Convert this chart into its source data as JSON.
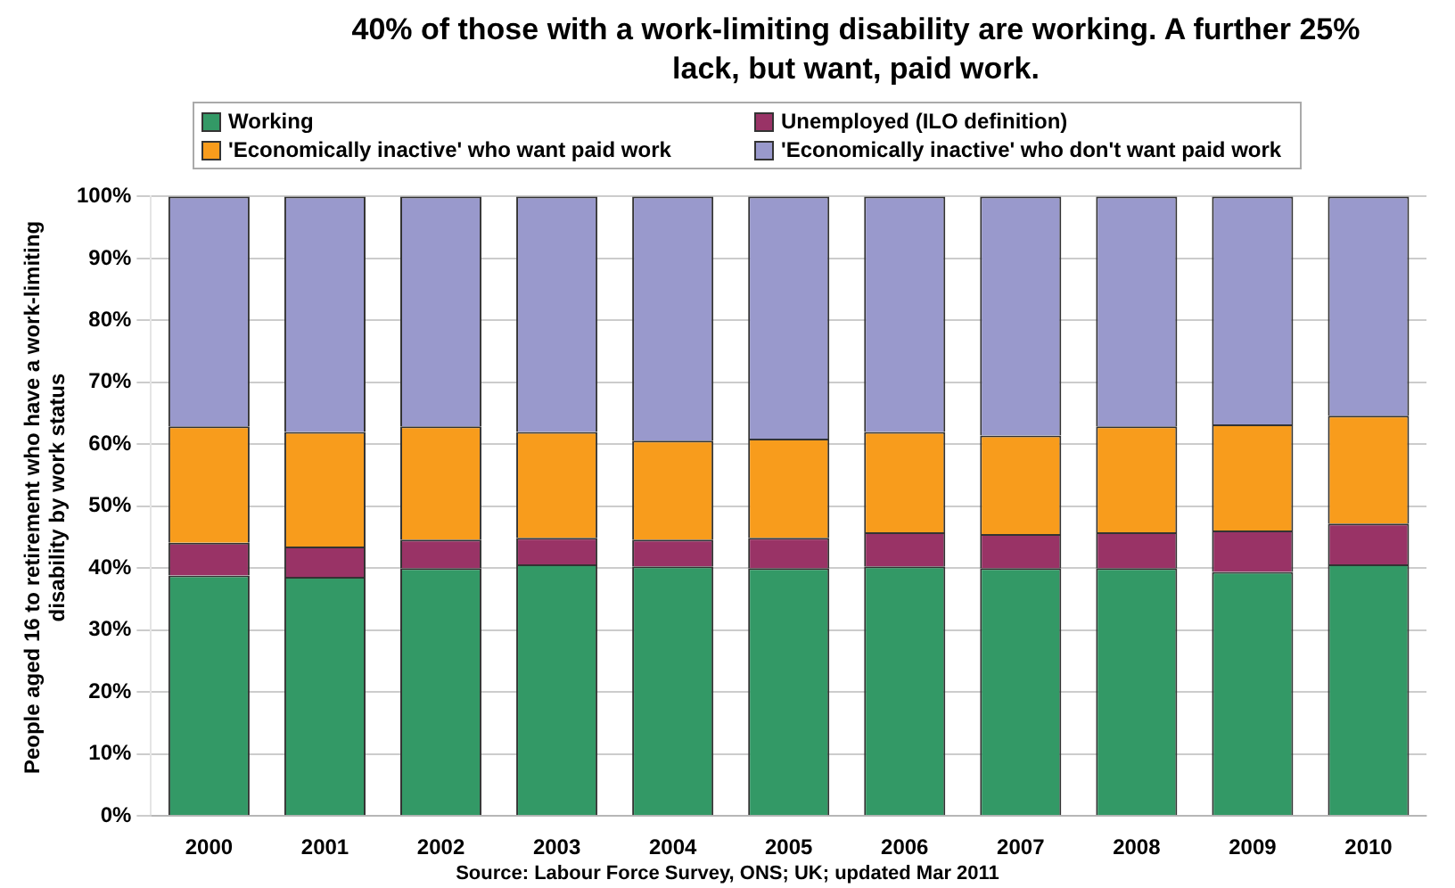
{
  "chart_data": {
    "type": "bar",
    "stacked": true,
    "title": "40% of those with a work-limiting disability are working.  A further 25% lack, but want, paid work.",
    "ylabel": "People aged 16 to retirement who have a work-limiting disability by work status",
    "categories": [
      "2000",
      "2001",
      "2002",
      "2003",
      "2004",
      "2005",
      "2006",
      "2007",
      "2008",
      "2009",
      "2010"
    ],
    "series": [
      {
        "name": "Working",
        "color": "#339966",
        "values": [
          38.8,
          38.6,
          40,
          40.6,
          40.3,
          40,
          40.3,
          40,
          40,
          39.4,
          40.6
        ]
      },
      {
        "name": "Unemployed (ILO definition)",
        "color": "#993366",
        "values": [
          5.3,
          4.9,
          4.6,
          4.3,
          4.3,
          4.9,
          5.5,
          5.5,
          5.8,
          6.7,
          6.6
        ]
      },
      {
        "name": "'Economically inactive' who want paid work",
        "color": "#f89c1c",
        "values": [
          18.8,
          18.5,
          18.3,
          17.1,
          16,
          16,
          16.2,
          15.9,
          17.1,
          17.1,
          17.4
        ]
      },
      {
        "name": "'Economically inactive' who don't want paid work",
        "color": "#9999cc",
        "values": [
          37.1,
          38,
          37.1,
          38,
          39.4,
          39.1,
          38,
          38.6,
          37.1,
          36.8,
          35.4
        ]
      }
    ],
    "ylim": [
      0,
      100
    ],
    "yticks": [
      {
        "value": 0,
        "label": "0%"
      },
      {
        "value": 10,
        "label": "10%"
      },
      {
        "value": 20,
        "label": "20%"
      },
      {
        "value": 30,
        "label": "30%"
      },
      {
        "value": 40,
        "label": "40%"
      },
      {
        "value": 50,
        "label": "50%"
      },
      {
        "value": 60,
        "label": "60%"
      },
      {
        "value": 70,
        "label": "70%"
      },
      {
        "value": 80,
        "label": "80%"
      },
      {
        "value": 90,
        "label": "90%"
      },
      {
        "value": 100,
        "label": "100%"
      }
    ],
    "grid": "y",
    "legend": "top",
    "annotations": [
      "Source: Labour Force Survey, ONS; UK; updated Mar 2011"
    ]
  }
}
